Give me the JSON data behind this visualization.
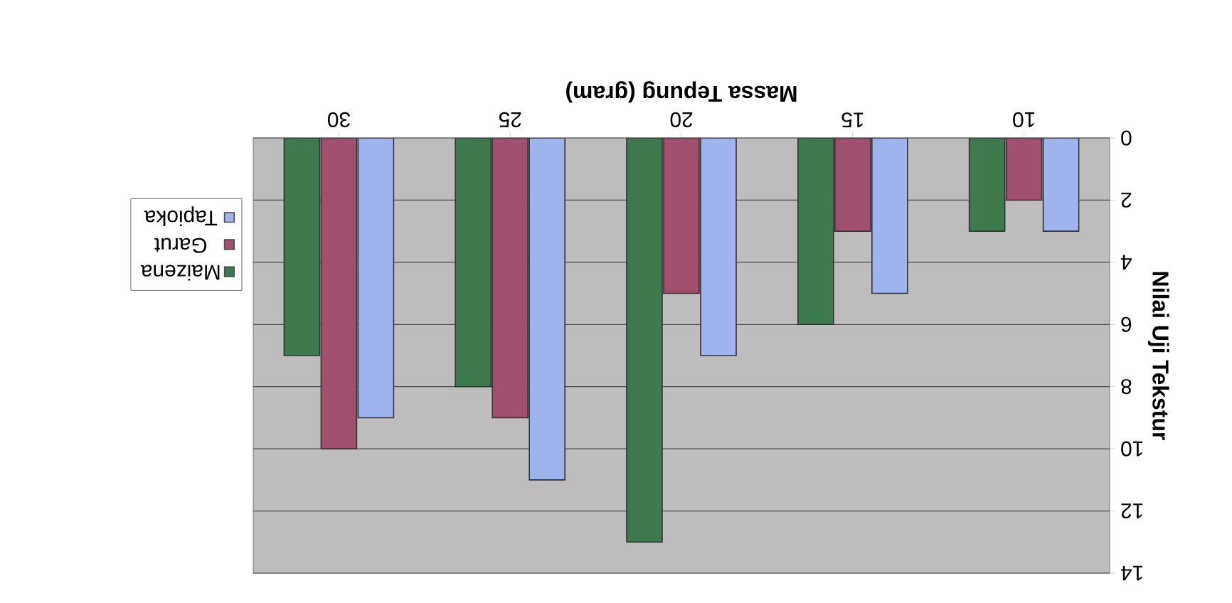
{
  "chart_data": {
    "type": "bar",
    "xlabel": "Massa Tepung (gram)",
    "ylabel": "Nilai Uji Tekstur",
    "categories": [
      "30",
      "25",
      "20",
      "15",
      "10"
    ],
    "series": [
      {
        "name": "Maizena",
        "color": "#3f7a4f",
        "values": [
          7,
          8,
          13,
          6,
          3
        ]
      },
      {
        "name": "Garut",
        "color": "#a0506e",
        "values": [
          10,
          9,
          5,
          3,
          2
        ]
      },
      {
        "name": "Tapioka",
        "color": "#9fb4ee",
        "values": [
          9,
          11,
          7,
          5,
          3
        ]
      }
    ],
    "ylim": [
      14,
      0
    ],
    "yticks": [
      0,
      2,
      4,
      6,
      8,
      10,
      12,
      14
    ],
    "grid": "y",
    "legend": "left"
  }
}
